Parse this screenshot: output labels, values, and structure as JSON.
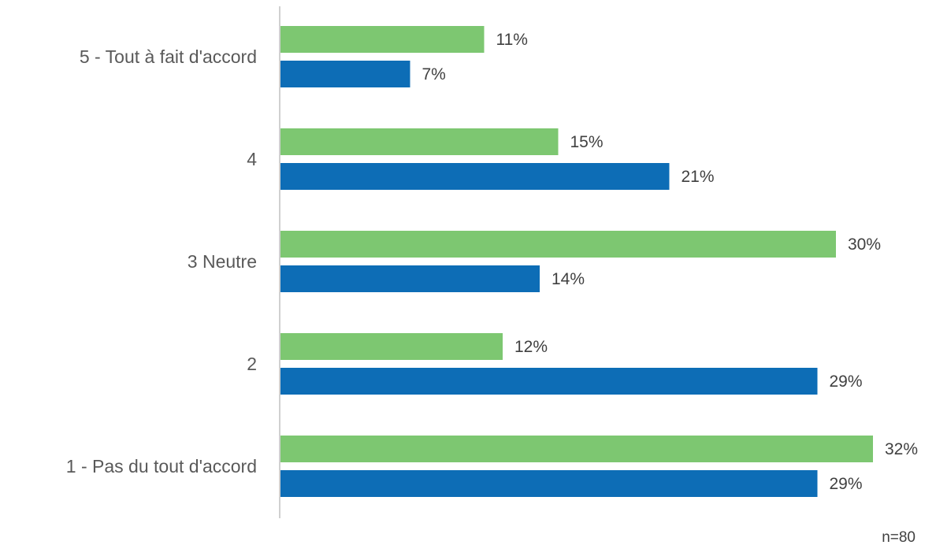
{
  "chart_data": {
    "type": "bar",
    "orientation": "horizontal",
    "categories": [
      "5 - Tout à fait d'accord",
      "4",
      "3 Neutre",
      "2",
      "1 - Pas du tout d'accord"
    ],
    "series": [
      {
        "color": "#7dc771",
        "values": [
          11,
          15,
          30,
          12,
          32
        ],
        "labels": [
          "11%",
          "15%",
          "30%",
          "12%",
          "32%"
        ]
      },
      {
        "color": "#0d6db6",
        "values": [
          7,
          21,
          14,
          29,
          29
        ],
        "labels": [
          "7%",
          "21%",
          "14%",
          "29%",
          "29%"
        ]
      }
    ],
    "xlim": [
      0,
      32
    ],
    "grid": false,
    "legend": "none",
    "note": "n=80"
  }
}
